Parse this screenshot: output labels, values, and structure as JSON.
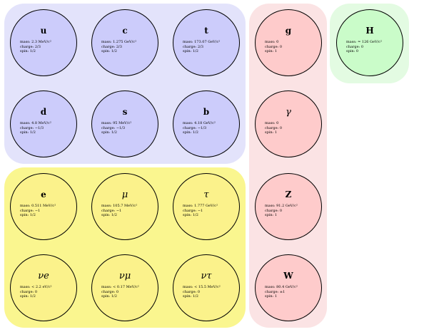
{
  "particles": {
    "up": {
      "symbol": "u",
      "mass": "mass: 2.3 MeV/c²",
      "charge": "charge: 2/3",
      "spin": "spin: 1/2"
    },
    "charm": {
      "symbol": "c",
      "mass": "mass: 1.275 GeV/c²",
      "charge": "charge: 2/3",
      "spin": "spin: 1/2"
    },
    "top": {
      "symbol": "t",
      "mass": "mass: 173.07 GeV/c²",
      "charge": "charge: 2/3",
      "spin": "spin: 1/2"
    },
    "down": {
      "symbol": "d",
      "mass": "mass: 4.8 MeV/c²",
      "charge": "charge: −1/3",
      "spin": "spin: 1/2"
    },
    "strange": {
      "symbol": "s",
      "mass": "mass: 95 MeV/c²",
      "charge": "charge: −1/3",
      "spin": "spin: 1/2"
    },
    "bottom": {
      "symbol": "b",
      "mass": "mass: 4.18 GeV/c²",
      "charge": "charge: −1/3",
      "spin": "spin: 1/2"
    },
    "electron": {
      "symbol": "e",
      "mass": "mass: 0.511 MeV/c²",
      "charge": "charge: −1",
      "spin": "spin: 1/2"
    },
    "muon": {
      "symbol": "μ",
      "mass": "mass: 105.7 MeV/c²",
      "charge": "charge: −1",
      "spin": "spin: 1/2"
    },
    "tau": {
      "symbol": "τ",
      "mass": "mass: 1.777 GeV/c²",
      "charge": "charge: −1",
      "spin": "spin: 1/2"
    },
    "electron_neutrino": {
      "symbol": "νe",
      "mass": "mass: < 2.2 eV/c²",
      "charge": "charge: 0",
      "spin": "spin: 1/2"
    },
    "muon_neutrino": {
      "symbol": "νμ",
      "mass": "mass: < 0.17 MeV/c²",
      "charge": "charge: 0",
      "spin": "spin: 1/2"
    },
    "tau_neutrino": {
      "symbol": "ντ",
      "mass": "mass: < 15.5 MeV/c²",
      "charge": "charge: 0",
      "spin": "spin: 1/2"
    },
    "gluon": {
      "symbol": "g",
      "mass": "mass: 0",
      "charge": "charge: 0",
      "spin": "spin: 1"
    },
    "photon": {
      "symbol": "γ",
      "mass": "mass: 0",
      "charge": "charge: 0",
      "spin": "spin: 1"
    },
    "z_boson": {
      "symbol": "Z",
      "mass": "mass: 91.2 GeV/c²",
      "charge": "charge: 0",
      "spin": "spin: 1"
    },
    "w_boson": {
      "symbol": "W",
      "mass": "mass: 80.4 GeV/c²",
      "charge": "charge: ±1",
      "spin": "spin: 1"
    },
    "higgs": {
      "symbol": "H",
      "mass": "mass: ≃ 126 GeV/c²",
      "charge": "charge: 0",
      "spin": "spin: 0"
    }
  },
  "colors": {
    "quark_group": "#e3e3fb",
    "quark_particle": "#ccccfb",
    "lepton_group": "#faf68f",
    "lepton_particle": "#fbf28b",
    "boson_group": "#fbe3e4",
    "boson_particle": "#fecbcb",
    "higgs_group": "#e3fbe2",
    "higgs_particle": "#cafcc9"
  }
}
